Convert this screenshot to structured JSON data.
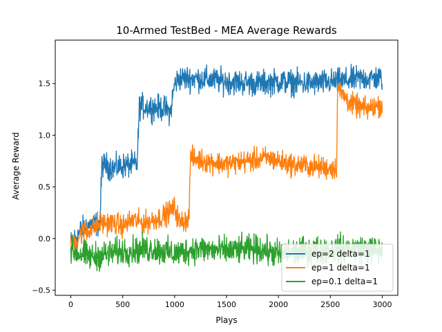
{
  "chart_data": {
    "type": "line",
    "title": "10-Armed TestBed - MEA Average Rewards",
    "xlabel": "Plays",
    "ylabel": "Average Reward",
    "xlim": [
      -150,
      3150
    ],
    "ylim": [
      -0.55,
      1.92
    ],
    "xticks": [
      0,
      500,
      1000,
      1500,
      2000,
      2500,
      3000
    ],
    "xtick_labels": [
      "0",
      "500",
      "1000",
      "1500",
      "2000",
      "2500",
      "3000"
    ],
    "yticks": [
      -0.5,
      0.0,
      0.5,
      1.0,
      1.5
    ],
    "ytick_labels": [
      "−0.5",
      "0.0",
      "0.5",
      "1.0",
      "1.5"
    ],
    "grid": false,
    "legend_position": "bottom-right",
    "noise_note": "",
    "series": [
      {
        "name": "ep=2 delta=1",
        "color": "#1f77b4",
        "noise": 0.09,
        "x": [
          0,
          100,
          150,
          280,
          300,
          420,
          480,
          640,
          660,
          900,
          960,
          1000,
          1050,
          1200,
          1500,
          1800,
          2000,
          2300,
          2600,
          2800,
          3000
        ],
        "y": [
          -0.05,
          0.08,
          0.12,
          0.15,
          0.72,
          0.68,
          0.7,
          0.72,
          1.28,
          1.26,
          1.22,
          1.5,
          1.55,
          1.55,
          1.52,
          1.5,
          1.52,
          1.5,
          1.52,
          1.55,
          1.55
        ]
      },
      {
        "name": "ep=1 delta=1",
        "color": "#ff7f0e",
        "noise": 0.08,
        "x": [
          0,
          100,
          200,
          300,
          400,
          500,
          600,
          700,
          800,
          900,
          1000,
          1050,
          1140,
          1150,
          1300,
          1500,
          1700,
          1900,
          2100,
          2300,
          2500,
          2560,
          2570,
          2700,
          2850,
          3000
        ],
        "y": [
          -0.1,
          0.05,
          0.1,
          0.15,
          0.15,
          0.12,
          0.18,
          0.15,
          0.18,
          0.22,
          0.3,
          0.15,
          0.2,
          0.78,
          0.75,
          0.72,
          0.75,
          0.78,
          0.72,
          0.7,
          0.68,
          0.68,
          1.45,
          1.3,
          1.25,
          1.3
        ]
      },
      {
        "name": "ep=0.1 delta=1",
        "color": "#2ca02c",
        "noise": 0.1,
        "x": [
          0,
          100,
          200,
          500,
          800,
          1000,
          1200,
          1500,
          1800,
          2000,
          2300,
          2600,
          2800,
          3000
        ],
        "y": [
          -0.12,
          -0.15,
          -0.18,
          -0.12,
          -0.1,
          -0.15,
          -0.1,
          -0.12,
          -0.1,
          -0.15,
          -0.12,
          -0.1,
          -0.1,
          -0.12
        ]
      }
    ]
  }
}
